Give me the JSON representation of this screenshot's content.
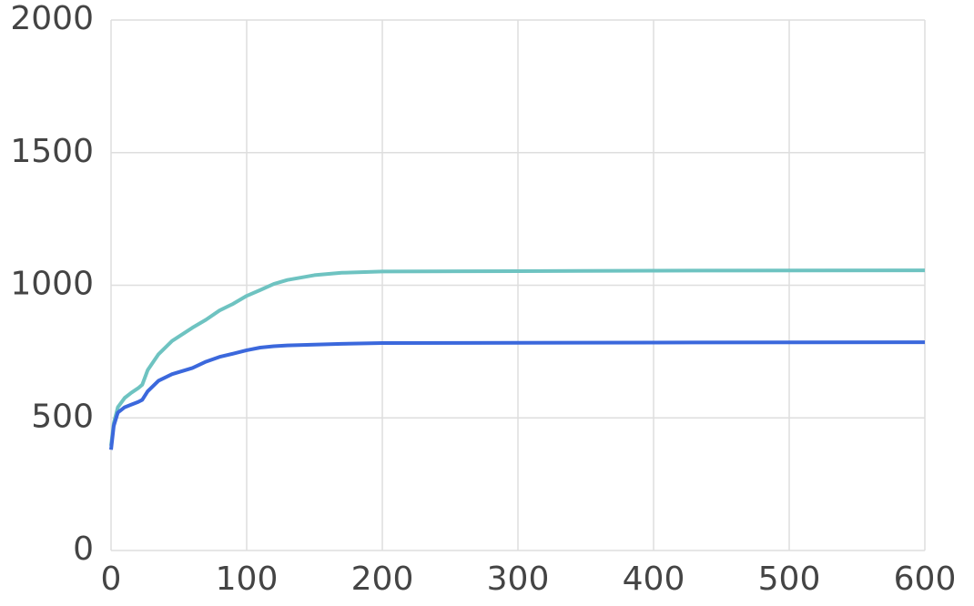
{
  "chart_data": {
    "type": "line",
    "x": [
      0,
      2,
      5,
      10,
      15,
      20,
      23,
      27,
      35,
      45,
      60,
      70,
      80,
      90,
      100,
      110,
      120,
      130,
      150,
      170,
      200,
      300,
      400,
      600
    ],
    "series": [
      {
        "color": "#6ec3c1",
        "values": [
          395,
          480,
          540,
          575,
          595,
          612,
          625,
          680,
          740,
          790,
          840,
          870,
          905,
          930,
          960,
          982,
          1005,
          1020,
          1038,
          1047,
          1052,
          1053,
          1055,
          1056
        ]
      },
      {
        "color": "#3b68dc",
        "values": [
          380,
          470,
          520,
          540,
          550,
          560,
          568,
          600,
          640,
          665,
          688,
          712,
          730,
          742,
          755,
          765,
          770,
          773,
          776,
          779,
          782,
          783,
          784,
          785
        ]
      }
    ],
    "xlim": [
      0,
      600
    ],
    "xticks": [
      0,
      100,
      200,
      300,
      400,
      500,
      600
    ],
    "ylim": [
      0,
      2000
    ],
    "yticks": [
      0,
      500,
      1000,
      1500,
      2000
    ],
    "grid": true
  }
}
